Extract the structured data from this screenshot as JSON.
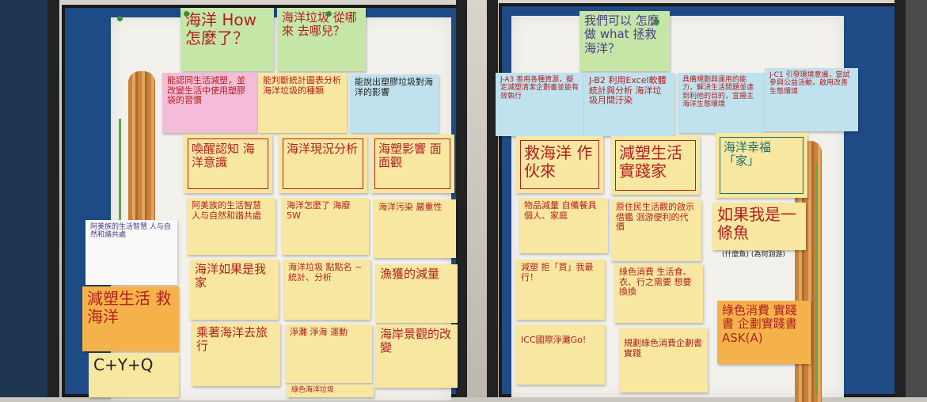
{
  "notes": {
    "n1": "海洋 How 怎麼了？",
    "n2": "海洋垃圾 從哪來 去哪兒？",
    "n3": "能認同生活減塑，並改變生活中使用塑膠袋的習慣",
    "n4": "能判斷統計圖表分析海洋垃圾的種類",
    "n5": "能說出塑膠垃圾對海洋的影響",
    "n6": "喚醒認知 海洋意識",
    "n7": "海洋現況分析",
    "n8": "海塑影響 面面觀",
    "n9": "阿美族的生活智慧 人与自然和諧共處",
    "n10": "海洋怎麼了 海廢5W",
    "n11": "海洋污染 嚴重性",
    "n12": "海洋如果是我家",
    "n13": "海洋垃圾 點點名 ~統計、分析",
    "n14": "漁獲的減量",
    "n15": "減塑生活 救海洋",
    "n16": "乘著海洋去旅行",
    "n17": "淨灘 淨海 運動",
    "n18": "海岸景觀的改變",
    "n19": "C+Y+Q",
    "n20": "綠色海洋垃圾",
    "n21": "我們可以 怎麼做 what 拯救海洋？",
    "n22": "J-A3 善用各種資源，擬定減塑清潔企劃書並能有效執行",
    "n23": "J-B2 利用Excel軟體 統計與分析 海洋垃圾月間汙染",
    "n24": "具備規劃與運用的能力，解決生活問題並達到利他的目的，宣揚主海洋生態環境",
    "n25": "J-C1 引發環境意識，當試參與公益活動，啟用改善生態環境",
    "n26": "救海洋 作伙來",
    "n27": "減塑生活 實踐家",
    "n28": "海洋幸福「家」",
    "n29": "物品減量 自備餐具 個人、家庭",
    "n30": "原住民生活觀的啟示 借鑑 洄游便利的代價",
    "n31": "如果我是一條魚",
    "n32": "(什麼魚) (為何洄游)",
    "n33": "減塑 拒「買」我最行！",
    "n34": "綠色消費 生活食、衣、行之需要 想要換換",
    "n35": "綠色消費 實踐書 企劃實踐書 ASK(A)",
    "n36": "ICC國際淨灘Go!",
    "n37": "規劃綠色消費企劃書 實踐"
  },
  "colors": {
    "board": "#1e4a86",
    "note_yellow": "#f8e7a0",
    "note_green": "#c6e6a8",
    "note_pink": "#f4bcd8",
    "note_blue": "#bfe2ee",
    "note_orange": "#f6b24a",
    "ink_red": "#b02020"
  }
}
